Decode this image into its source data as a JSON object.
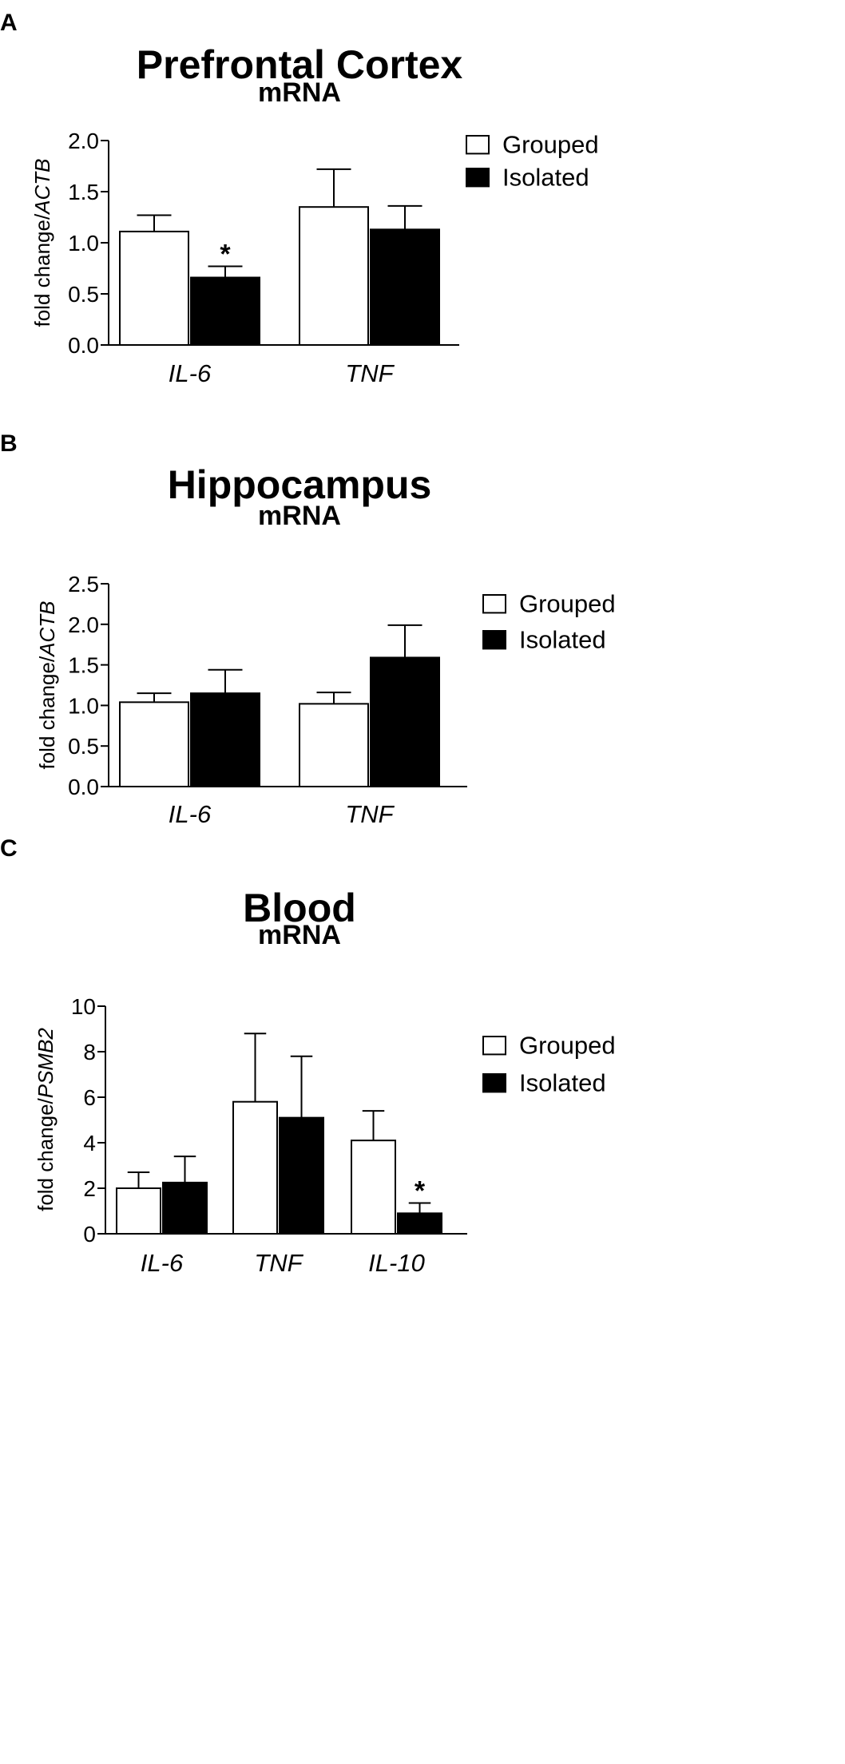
{
  "chart_data": [
    {
      "type": "bar",
      "panel": "A",
      "title": "Prefrontal Cortex",
      "subtitle": "mRNA",
      "ylabel_plain": "fold change/",
      "ylabel_italic": "ACTB",
      "categories": [
        "IL-6",
        "TNF"
      ],
      "ylim": [
        0,
        2.0
      ],
      "yticks": [
        "0.0",
        "0.5",
        "1.0",
        "1.5",
        "2.0"
      ],
      "legend": [
        "Grouped",
        "Isolated"
      ],
      "legend_position": "top-right",
      "series": [
        {
          "name": "Grouped",
          "color": "#ffffff",
          "values": [
            1.11,
            1.35
          ],
          "errors": [
            0.16,
            0.37
          ],
          "sig": [
            "",
            ""
          ]
        },
        {
          "name": "Isolated",
          "color": "#000000",
          "values": [
            0.66,
            1.13
          ],
          "errors": [
            0.11,
            0.23
          ],
          "sig": [
            "*",
            ""
          ]
        }
      ]
    },
    {
      "type": "bar",
      "panel": "B",
      "title": "Hippocampus",
      "subtitle": "mRNA",
      "ylabel_plain": "fold change/",
      "ylabel_italic": "ACTB",
      "categories": [
        "IL-6",
        "TNF"
      ],
      "ylim": [
        0,
        2.5
      ],
      "yticks": [
        "0.0",
        "0.5",
        "1.0",
        "1.5",
        "2.0",
        "2.5"
      ],
      "legend": [
        "Grouped",
        "Isolated"
      ],
      "legend_position": "right",
      "series": [
        {
          "name": "Grouped",
          "color": "#ffffff",
          "values": [
            1.04,
            1.02
          ],
          "errors": [
            0.11,
            0.14
          ],
          "sig": [
            "",
            ""
          ]
        },
        {
          "name": "Isolated",
          "color": "#000000",
          "values": [
            1.15,
            1.59
          ],
          "errors": [
            0.29,
            0.4
          ],
          "sig": [
            "",
            ""
          ]
        }
      ]
    },
    {
      "type": "bar",
      "panel": "C",
      "title": "Blood",
      "subtitle": "mRNA",
      "ylabel_plain": "fold change/",
      "ylabel_italic": "PSMB2",
      "categories": [
        "IL-6",
        "TNF",
        "IL-10"
      ],
      "ylim": [
        0,
        10
      ],
      "yticks": [
        "0",
        "2",
        "4",
        "6",
        "8",
        "10"
      ],
      "legend": [
        "Grouped",
        "Isolated"
      ],
      "legend_position": "right",
      "series": [
        {
          "name": "Grouped",
          "color": "#ffffff",
          "values": [
            2.0,
            5.8,
            4.1
          ],
          "errors": [
            0.7,
            3.0,
            1.3
          ],
          "sig": [
            "",
            "",
            ""
          ]
        },
        {
          "name": "Isolated",
          "color": "#000000",
          "values": [
            2.25,
            5.1,
            0.9
          ],
          "errors": [
            1.15,
            2.7,
            0.45
          ],
          "sig": [
            "",
            "",
            "*"
          ]
        }
      ]
    }
  ]
}
